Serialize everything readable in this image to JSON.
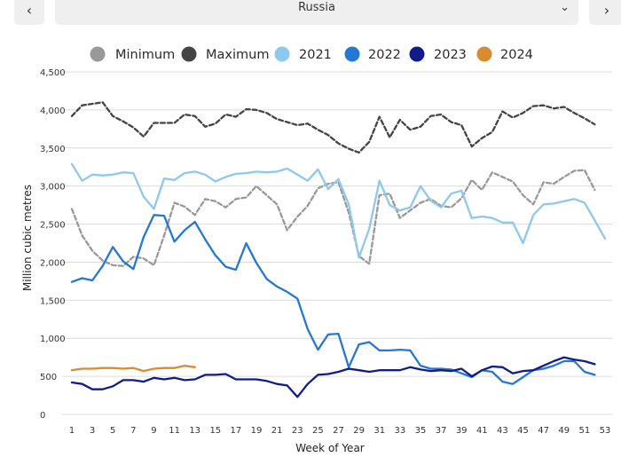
{
  "header": {
    "prev_icon": "‹",
    "next_icon": "›",
    "country": "Russia",
    "dropdown_icon": "⌄"
  },
  "chart_data": {
    "type": "line",
    "title": "",
    "xlabel": "Week of Year",
    "ylabel": "Million cubic metres",
    "xlim": [
      1,
      53
    ],
    "ylim": [
      0,
      4500
    ],
    "x_ticks": [
      1,
      3,
      5,
      7,
      9,
      11,
      13,
      15,
      17,
      19,
      21,
      23,
      25,
      27,
      29,
      31,
      33,
      35,
      37,
      39,
      41,
      43,
      45,
      47,
      49,
      51,
      53
    ],
    "y_ticks": [
      0,
      500,
      1000,
      1500,
      2000,
      2500,
      3000,
      3500,
      4000,
      4500
    ],
    "y_tick_labels": [
      "0",
      "500",
      "1,000",
      "1,500",
      "2,000",
      "2,500",
      "3,000",
      "3,500",
      "4,000",
      "4,500"
    ],
    "legend": [
      "Minimum",
      "Maximum",
      "2021",
      "2022",
      "2023",
      "2024"
    ],
    "series": [
      {
        "name": "Minimum",
        "color": "#999999",
        "dashed": true,
        "x": [
          1,
          2,
          3,
          4,
          5,
          6,
          7,
          8,
          9,
          10,
          11,
          12,
          13,
          14,
          15,
          16,
          17,
          18,
          19,
          20,
          21,
          22,
          23,
          24,
          25,
          26,
          27,
          28,
          29,
          30,
          31,
          32,
          33,
          34,
          35,
          36,
          37,
          38,
          39,
          40,
          41,
          42,
          43,
          44,
          45,
          46,
          47,
          48,
          49,
          50,
          51,
          52
        ],
        "y": [
          2700,
          2350,
          2150,
          2020,
          1960,
          1950,
          2070,
          2050,
          1960,
          2350,
          2780,
          2730,
          2620,
          2830,
          2800,
          2720,
          2830,
          2850,
          3000,
          2880,
          2760,
          2420,
          2600,
          2740,
          2970,
          3030,
          3050,
          2650,
          2080,
          1980,
          2880,
          2900,
          2580,
          2680,
          2780,
          2830,
          2740,
          2720,
          2840,
          3080,
          2950,
          3180,
          3120,
          3060,
          2880,
          2760,
          3050,
          3030,
          3120,
          3200,
          3210,
          2950
        ]
      },
      {
        "name": "Maximum",
        "color": "#444444",
        "dashed": true,
        "x": [
          1,
          2,
          3,
          4,
          5,
          6,
          7,
          8,
          9,
          10,
          11,
          12,
          13,
          14,
          15,
          16,
          17,
          18,
          19,
          20,
          21,
          22,
          23,
          24,
          25,
          26,
          27,
          28,
          29,
          30,
          31,
          32,
          33,
          34,
          35,
          36,
          37,
          38,
          39,
          40,
          41,
          42,
          43,
          44,
          45,
          46,
          47,
          48,
          49,
          50,
          51,
          52
        ],
        "y": [
          3920,
          4060,
          4080,
          4100,
          3920,
          3850,
          3770,
          3650,
          3830,
          3830,
          3830,
          3940,
          3920,
          3780,
          3820,
          3940,
          3910,
          4010,
          4000,
          3960,
          3880,
          3840,
          3800,
          3820,
          3740,
          3670,
          3560,
          3490,
          3440,
          3580,
          3910,
          3640,
          3870,
          3740,
          3780,
          3920,
          3940,
          3840,
          3800,
          3520,
          3630,
          3710,
          3980,
          3900,
          3960,
          4050,
          4060,
          4020,
          4040,
          3960,
          3890,
          3810
        ]
      },
      {
        "name": "2021",
        "color": "#8ec8ee",
        "dashed": false,
        "x": [
          1,
          2,
          3,
          4,
          5,
          6,
          7,
          8,
          9,
          10,
          11,
          12,
          13,
          14,
          15,
          16,
          17,
          18,
          19,
          20,
          21,
          22,
          23,
          24,
          25,
          26,
          27,
          28,
          29,
          30,
          31,
          32,
          33,
          34,
          35,
          36,
          37,
          38,
          39,
          40,
          41,
          42,
          43,
          44,
          45,
          46,
          47,
          48,
          49,
          50,
          51,
          52,
          53
        ],
        "y": [
          3290,
          3070,
          3150,
          3140,
          3150,
          3180,
          3170,
          2860,
          2700,
          3100,
          3080,
          3170,
          3190,
          3150,
          3060,
          3120,
          3160,
          3170,
          3190,
          3180,
          3190,
          3230,
          3150,
          3070,
          3220,
          2960,
          3090,
          2760,
          2060,
          2440,
          3070,
          2750,
          2680,
          2720,
          3000,
          2810,
          2720,
          2900,
          2940,
          2580,
          2600,
          2580,
          2520,
          2520,
          2250,
          2620,
          2760,
          2770,
          2800,
          2830,
          2780,
          2550,
          2310
        ]
      },
      {
        "name": "2022",
        "color": "#2477d4",
        "dashed": false,
        "x": [
          1,
          2,
          3,
          4,
          5,
          6,
          7,
          8,
          9,
          10,
          11,
          12,
          13,
          14,
          15,
          16,
          17,
          18,
          19,
          20,
          21,
          22,
          23,
          24,
          25,
          26,
          27,
          28,
          29,
          30,
          31,
          32,
          33,
          34,
          35,
          36,
          37,
          38,
          39,
          40,
          41,
          42,
          43,
          44,
          45,
          46,
          47,
          48,
          49,
          50,
          51,
          52
        ],
        "y": [
          1740,
          1790,
          1760,
          1950,
          2200,
          2010,
          1910,
          2330,
          2620,
          2610,
          2270,
          2420,
          2530,
          2300,
          2090,
          1940,
          1900,
          2250,
          1990,
          1780,
          1680,
          1610,
          1520,
          1120,
          850,
          1050,
          1060,
          620,
          920,
          950,
          840,
          840,
          850,
          840,
          640,
          600,
          600,
          590,
          540,
          490,
          580,
          560,
          430,
          400,
          490,
          580,
          600,
          640,
          700,
          700,
          560,
          520
        ]
      },
      {
        "name": "2023",
        "color": "#101c8c",
        "dashed": false,
        "x": [
          1,
          2,
          3,
          4,
          5,
          6,
          7,
          8,
          9,
          10,
          11,
          12,
          13,
          14,
          15,
          16,
          17,
          18,
          19,
          20,
          21,
          22,
          23,
          24,
          25,
          26,
          27,
          28,
          29,
          30,
          31,
          32,
          33,
          34,
          35,
          36,
          37,
          38,
          39,
          40,
          41,
          42,
          43,
          44,
          45,
          46,
          47,
          48,
          49,
          50,
          51,
          52
        ],
        "y": [
          420,
          400,
          330,
          330,
          370,
          450,
          450,
          430,
          480,
          460,
          480,
          450,
          460,
          520,
          520,
          530,
          460,
          460,
          460,
          440,
          400,
          380,
          230,
          400,
          520,
          530,
          560,
          600,
          580,
          560,
          580,
          580,
          580,
          620,
          590,
          570,
          580,
          570,
          600,
          500,
          580,
          630,
          620,
          540,
          570,
          580,
          640,
          700,
          750,
          720,
          700,
          660
        ]
      },
      {
        "name": "2024",
        "color": "#d88c2f",
        "dashed": false,
        "x": [
          1,
          2,
          3,
          4,
          5,
          6,
          7,
          8,
          9,
          10,
          11,
          12,
          13
        ],
        "y": [
          580,
          600,
          600,
          610,
          610,
          600,
          610,
          570,
          600,
          610,
          610,
          640,
          620
        ]
      }
    ]
  }
}
